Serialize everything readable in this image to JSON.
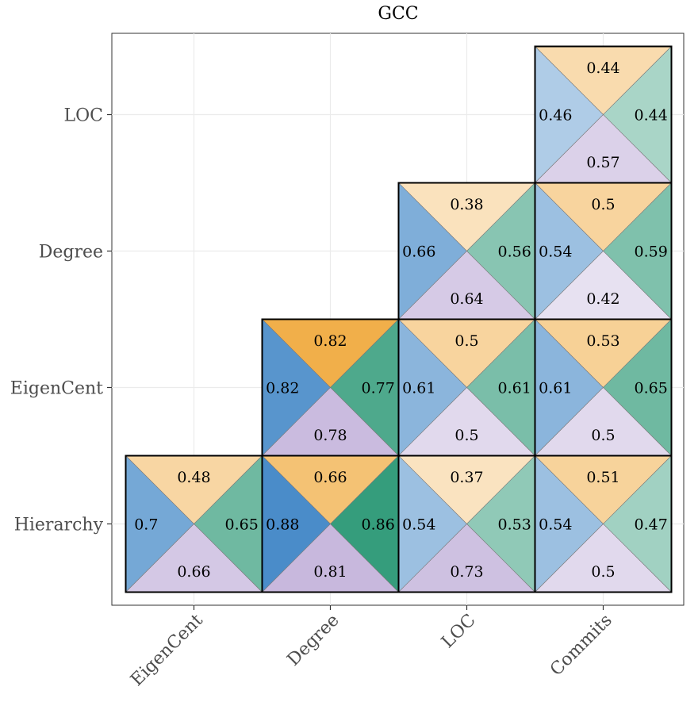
{
  "chart_data": {
    "type": "heatmap",
    "title": "GCC",
    "x_categories": [
      "EigenCent",
      "Degree",
      "LOC",
      "Commits"
    ],
    "y_categories": [
      "Hierarchy",
      "EigenCent",
      "Degree",
      "LOC"
    ],
    "triangle_order": [
      "top",
      "left",
      "right",
      "bottom"
    ],
    "triangle_colors": {
      "top": "#f0a83a",
      "left": "#4a8cc9",
      "right": "#2f9a78",
      "bottom": "#c2b1da"
    },
    "cells": [
      {
        "x": "EigenCent",
        "y": "Hierarchy",
        "top": 0.48,
        "left": 0.7,
        "right": 0.65,
        "bottom": 0.66
      },
      {
        "x": "Degree",
        "y": "Hierarchy",
        "top": 0.66,
        "left": 0.88,
        "right": 0.86,
        "bottom": 0.81
      },
      {
        "x": "LOC",
        "y": "Hierarchy",
        "top": 0.37,
        "left": 0.54,
        "right": 0.53,
        "bottom": 0.73
      },
      {
        "x": "Commits",
        "y": "Hierarchy",
        "top": 0.51,
        "left": 0.54,
        "right": 0.47,
        "bottom": 0.5
      },
      {
        "x": "Degree",
        "y": "EigenCent",
        "top": 0.82,
        "left": 0.82,
        "right": 0.77,
        "bottom": 0.78
      },
      {
        "x": "LOC",
        "y": "EigenCent",
        "top": 0.5,
        "left": 0.61,
        "right": 0.61,
        "bottom": 0.5
      },
      {
        "x": "Commits",
        "y": "EigenCent",
        "top": 0.53,
        "left": 0.61,
        "right": 0.65,
        "bottom": 0.5
      },
      {
        "x": "LOC",
        "y": "Degree",
        "top": 0.38,
        "left": 0.66,
        "right": 0.56,
        "bottom": 0.64
      },
      {
        "x": "Commits",
        "y": "Degree",
        "top": 0.5,
        "left": 0.54,
        "right": 0.59,
        "bottom": 0.42
      },
      {
        "x": "Commits",
        "y": "LOC",
        "top": 0.44,
        "left": 0.46,
        "right": 0.44,
        "bottom": 0.57
      }
    ],
    "value_range": [
      0.37,
      0.88
    ],
    "grid": true,
    "legend": "none"
  }
}
